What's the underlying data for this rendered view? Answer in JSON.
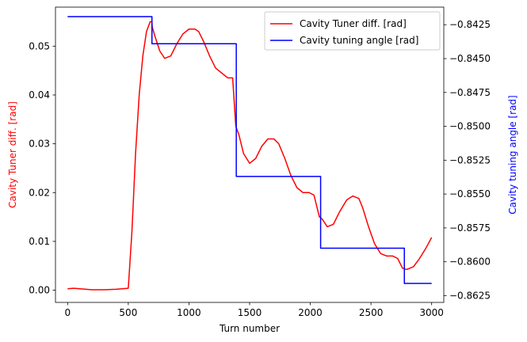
{
  "chart_data": {
    "type": "line",
    "xlabel": "Turn number",
    "ylabel_left": "Cavity Tuner diff. [rad]",
    "ylabel_right": "Cavity tuning angle [rad]",
    "xlim": [
      -100,
      3100
    ],
    "ylim_left": [
      -0.0025,
      0.058
    ],
    "ylim_right": [
      -0.863,
      -0.8412
    ],
    "x_ticks": [
      0,
      500,
      1000,
      1500,
      2000,
      2500,
      3000
    ],
    "y_ticks_left": [
      0.0,
      0.01,
      0.02,
      0.03,
      0.04,
      0.05
    ],
    "y_ticks_right": [
      -0.8625,
      -0.86,
      -0.8575,
      -0.855,
      -0.8525,
      -0.85,
      -0.8475,
      -0.845,
      -0.8425
    ],
    "legend_position": "top-right",
    "colors": {
      "left": "#ff0000",
      "right": "#0000ff"
    },
    "series": [
      {
        "name": "Cavity Tuner diff. [rad]",
        "axis": "left",
        "color": "#ff0000",
        "x": [
          0,
          50,
          100,
          200,
          300,
          400,
          500,
          530,
          560,
          590,
          620,
          650,
          680,
          695,
          697,
          720,
          760,
          800,
          850,
          900,
          950,
          1000,
          1050,
          1080,
          1120,
          1170,
          1220,
          1270,
          1320,
          1360,
          1385,
          1387,
          1410,
          1450,
          1500,
          1550,
          1600,
          1650,
          1700,
          1740,
          1790,
          1840,
          1890,
          1940,
          1990,
          2030,
          2075,
          2080,
          2100,
          2140,
          2190,
          2240,
          2300,
          2350,
          2400,
          2430,
          2480,
          2530,
          2580,
          2630,
          2680,
          2720,
          2760,
          2770,
          2780,
          2800,
          2850,
          2900,
          2950,
          3000
        ],
        "y": [
          0.0003,
          0.0004,
          0.0003,
          0.0001,
          0.0001,
          0.0002,
          0.0004,
          0.012,
          0.028,
          0.04,
          0.048,
          0.053,
          0.055,
          0.055,
          0.054,
          0.052,
          0.049,
          0.0475,
          0.048,
          0.0505,
          0.0525,
          0.0535,
          0.0535,
          0.053,
          0.051,
          0.048,
          0.0455,
          0.0445,
          0.0435,
          0.0435,
          0.034,
          0.0335,
          0.032,
          0.028,
          0.026,
          0.027,
          0.0295,
          0.031,
          0.031,
          0.03,
          0.027,
          0.0235,
          0.021,
          0.02,
          0.02,
          0.0195,
          0.015,
          0.015,
          0.0145,
          0.013,
          0.0135,
          0.016,
          0.0185,
          0.0193,
          0.0188,
          0.017,
          0.013,
          0.0095,
          0.0075,
          0.007,
          0.007,
          0.0065,
          0.0045,
          0.0045,
          0.0043,
          0.0043,
          0.0048,
          0.0065,
          0.0085,
          0.0108
        ]
      },
      {
        "name": "Cavity tuning angle [rad]",
        "axis": "right",
        "color": "#0000ff",
        "x": [
          0,
          695,
          695,
          1390,
          1390,
          2085,
          2085,
          2775,
          2775,
          3000
        ],
        "y": [
          -0.8419,
          -0.8419,
          -0.8439,
          -0.8439,
          -0.8537,
          -0.8537,
          -0.859,
          -0.859,
          -0.8616,
          -0.8616
        ]
      }
    ]
  }
}
